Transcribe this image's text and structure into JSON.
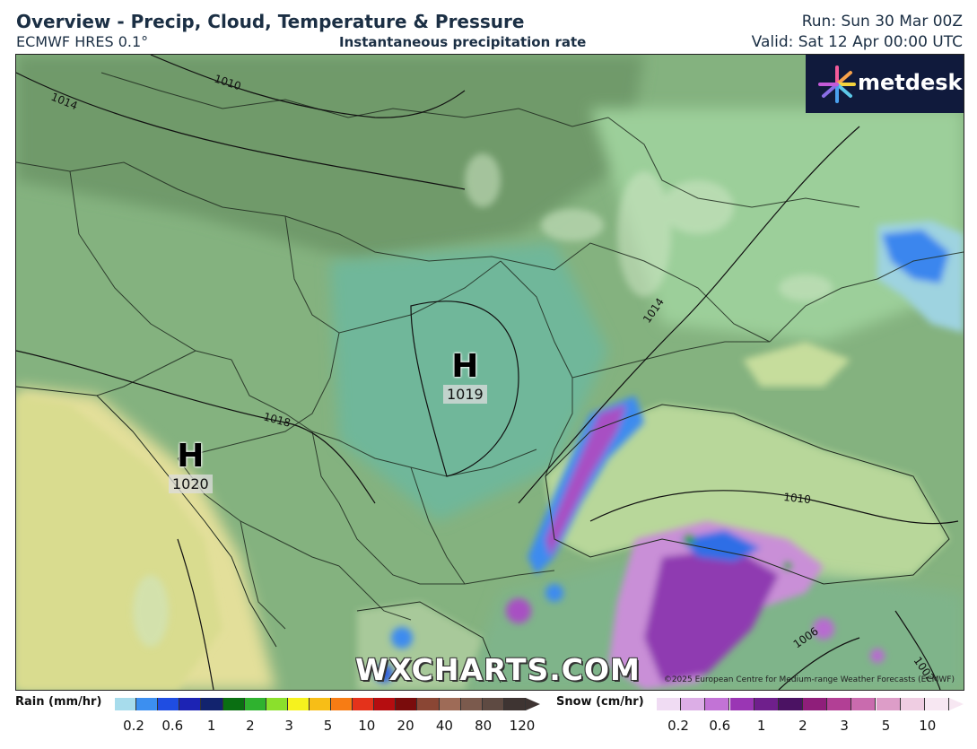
{
  "header": {
    "title": "Overview - Precip, Cloud, Temperature & Pressure",
    "model": "ECMWF HRES 0.1°",
    "subtitle": "Instantaneous precipitation rate",
    "run": "Run: Sun 30 Mar 00Z",
    "valid": "Valid: Sat 12 Apr 00:00 UTC"
  },
  "logo": {
    "text": "metdesk"
  },
  "watermark": "WXCHARTS.COM",
  "copyright": "©2025 European Centre for Medium-range Weather Forecasts (ECMWF)",
  "pressure_centres": [
    {
      "type": "H",
      "value": "1019"
    },
    {
      "type": "H",
      "value": "1020"
    }
  ],
  "isobar_labels": [
    "1010",
    "1014",
    "1018",
    "1014",
    "1010",
    "1006",
    "1002"
  ],
  "legend": {
    "rain": {
      "title": "Rain (mm/hr)",
      "ticks": [
        "0.2",
        "0.6",
        "1",
        "2",
        "3",
        "5",
        "10",
        "20",
        "40",
        "80",
        "120"
      ],
      "colors": [
        "#a7dcec",
        "#3c8ff0",
        "#1f4de2",
        "#1c23b4",
        "#12236e",
        "#0a6f12",
        "#2fb22f",
        "#8be02c",
        "#f6f21e",
        "#f7be17",
        "#f77c14",
        "#e4321b",
        "#b50d10",
        "#7a0c0c",
        "#8a4634",
        "#9e6b57",
        "#7b5a4d",
        "#5e4a42",
        "#3e3432"
      ]
    },
    "snow": {
      "title": "Snow (cm/hr)",
      "ticks": [
        "0.2",
        "0.6",
        "1",
        "2",
        "3",
        "5",
        "10"
      ],
      "colors": [
        "#f0dcf3",
        "#dcaee6",
        "#c273d6",
        "#9a36b4",
        "#6f1f8c",
        "#4b1263",
        "#8f1e7a",
        "#b23f95",
        "#c96bae",
        "#dd9dc8",
        "#efcde2",
        "#f7e7f2"
      ]
    }
  }
}
